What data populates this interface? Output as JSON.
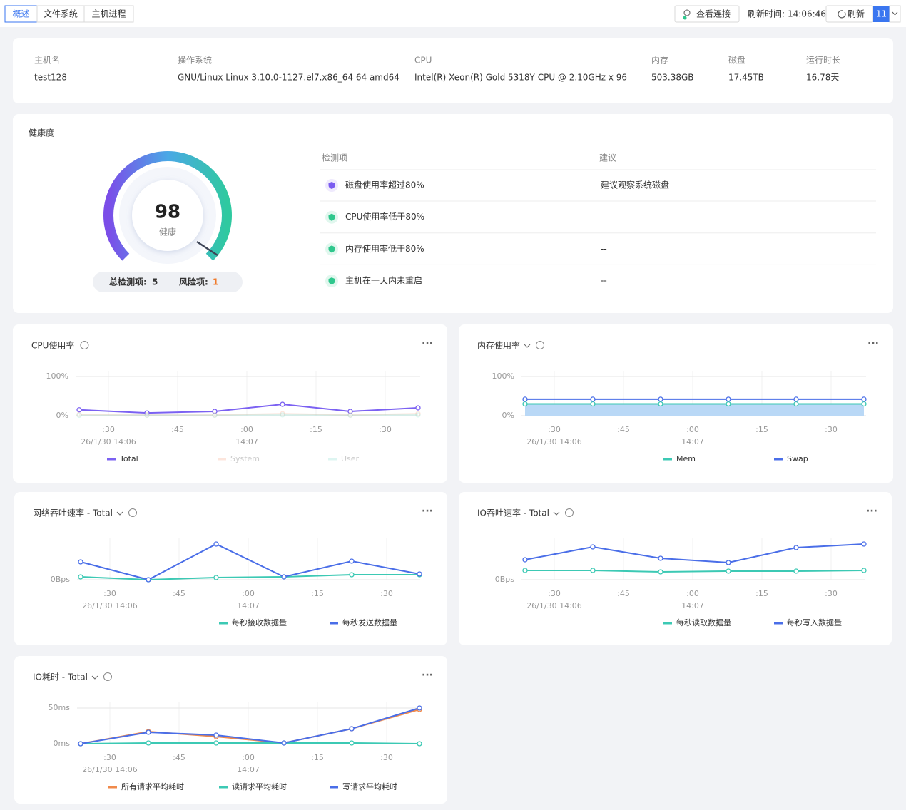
{
  "tabs": [
    "概述",
    "文件系统",
    "主机进程"
  ],
  "toolbar": {
    "view_connections": "查看连接",
    "refresh_time_label": "刷新时间:",
    "refresh_time": "14:06:46",
    "refresh": "刷新",
    "interval": "11"
  },
  "host": [
    {
      "label": "主机名",
      "value": "test128"
    },
    {
      "label": "操作系统",
      "value": "GNU/Linux Linux 3.10.0-1127.el7.x86_64 64 amd64"
    },
    {
      "label": "CPU",
      "value": "Intel(R) Xeon(R) Gold 5318Y CPU @ 2.10GHz x 96"
    },
    {
      "label": "内存",
      "value": "503.38GB"
    },
    {
      "label": "磁盘",
      "value": "17.45TB"
    },
    {
      "label": "运行时长",
      "value": "16.78天"
    }
  ],
  "health": {
    "title": "健康度",
    "score": 98,
    "score_label": "健康",
    "total_label": "总检测项:",
    "total": 5,
    "risk_label": "风险项:",
    "risk": 1,
    "columns": [
      "检测项",
      "建议"
    ],
    "rows": [
      {
        "item": "磁盘使用率超过80%",
        "advice": "建议观察系统磁盘",
        "status": "risk"
      },
      {
        "item": "CPU使用率低于80%",
        "advice": "--",
        "status": "ok"
      },
      {
        "item": "内存使用率低于80%",
        "advice": "--",
        "status": "ok"
      },
      {
        "item": "主机在一天内未重启",
        "advice": "--",
        "status": "ok"
      }
    ]
  },
  "charts": [
    {
      "type": "line",
      "title": "CPU使用率",
      "dropdown": false,
      "x_labels": [
        {
          "label": ":30",
          "sublabel": "26/1/30 14:06"
        },
        {
          "label": ":45"
        },
        {
          "label": ":00",
          "sublabel": "14:07"
        },
        {
          "label": ":15"
        },
        {
          "label": ":30"
        }
      ],
      "ylim": [
        0,
        100
      ],
      "yticks": [
        {
          "value": 0,
          "label": "0%"
        },
        {
          "value": 100,
          "label": "100%"
        }
      ],
      "series": [
        {
          "name": "Total",
          "color": "#7b61f2",
          "visible": true,
          "values": [
            15,
            7,
            11,
            29,
            11,
            20
          ]
        },
        {
          "name": "System",
          "color": "#f7b49a",
          "visible": false,
          "values": [
            3,
            2,
            2,
            5,
            2,
            5
          ]
        },
        {
          "name": "User",
          "color": "#9fe3d6",
          "visible": false,
          "values": [
            1,
            1,
            1,
            2,
            1,
            2
          ]
        }
      ]
    },
    {
      "type": "line",
      "title": "内存使用率",
      "dropdown": true,
      "x_labels": [
        {
          "label": ":30",
          "sublabel": "26/1/30 14:06"
        },
        {
          "label": ":45"
        },
        {
          "label": ":00",
          "sublabel": "14:07"
        },
        {
          "label": ":15"
        },
        {
          "label": ":30"
        }
      ],
      "ylim": [
        0,
        100
      ],
      "yticks": [
        {
          "value": 0,
          "label": "0%"
        },
        {
          "value": 100,
          "label": "100%"
        }
      ],
      "series": [
        {
          "name": "Mem",
          "color": "#3cc9b4",
          "visible": true,
          "area": true,
          "values": [
            30,
            30,
            30,
            30,
            30,
            30
          ]
        },
        {
          "name": "Swap",
          "color": "#4a6ee8",
          "visible": true,
          "values": [
            42,
            42,
            42,
            42,
            42,
            42
          ]
        }
      ]
    },
    {
      "type": "line",
      "title": "网络吞吐速率 - Total",
      "dropdown": true,
      "x_labels": [
        {
          "label": ":30",
          "sublabel": "26/1/30 14:06"
        },
        {
          "label": ":45"
        },
        {
          "label": ":00",
          "sublabel": "14:07"
        },
        {
          "label": ":15"
        },
        {
          "label": ":30"
        }
      ],
      "ylim": [
        0,
        50
      ],
      "yticks": [
        {
          "value": 0,
          "label": "0Bps"
        }
      ],
      "series": [
        {
          "name": "每秒接收数据量",
          "color": "#3cc9b4",
          "visible": true,
          "values": [
            4,
            0,
            3,
            4,
            7,
            7
          ]
        },
        {
          "name": "每秒发送数据量",
          "color": "#4a6ee8",
          "visible": true,
          "values": [
            25,
            0,
            50,
            4,
            26,
            8
          ]
        }
      ]
    },
    {
      "type": "line",
      "title": "IO吞吐速率 - Total",
      "dropdown": true,
      "x_labels": [
        {
          "label": ":30",
          "sublabel": "26/1/30 14:06"
        },
        {
          "label": ":45"
        },
        {
          "label": ":00",
          "sublabel": "14:07"
        },
        {
          "label": ":15"
        },
        {
          "label": ":30"
        }
      ],
      "ylim": [
        0,
        50
      ],
      "yticks": [
        {
          "value": 0,
          "label": "0Bps"
        }
      ],
      "series": [
        {
          "name": "每秒读取数据量",
          "color": "#3cc9b4",
          "visible": true,
          "values": [
            13,
            13,
            11,
            12,
            12,
            13
          ]
        },
        {
          "name": "每秒写入数据量",
          "color": "#4a6ee8",
          "visible": true,
          "values": [
            28,
            46,
            30,
            24,
            45,
            50
          ]
        }
      ]
    },
    {
      "type": "line",
      "title": "IO耗时 - Total",
      "dropdown": true,
      "x_labels": [
        {
          "label": ":30",
          "sublabel": "26/1/30 14:06"
        },
        {
          "label": ":45"
        },
        {
          "label": ":00",
          "sublabel": "14:07"
        },
        {
          "label": ":15"
        },
        {
          "label": ":30"
        }
      ],
      "ylim": [
        0,
        50
      ],
      "yticks": [
        {
          "value": 0,
          "label": "0ms"
        },
        {
          "value": 50,
          "label": "50ms"
        }
      ],
      "series": [
        {
          "name": "所有请求平均耗时",
          "color": "#f08a4b",
          "visible": true,
          "values": [
            0,
            17,
            10,
            1,
            21,
            48
          ]
        },
        {
          "name": "读请求平均耗时",
          "color": "#3cc9b4",
          "visible": true,
          "values": [
            0,
            1,
            1,
            1,
            1,
            0
          ]
        },
        {
          "name": "写请求平均耗时",
          "color": "#4a6ee8",
          "visible": true,
          "values": [
            0,
            16,
            12,
            1,
            21,
            50
          ]
        }
      ]
    }
  ]
}
